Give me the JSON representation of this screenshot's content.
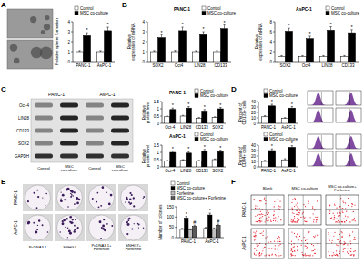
{
  "panel_labels": [
    "A",
    "B",
    "C",
    "D",
    "E",
    "F"
  ],
  "chart_data": [
    {
      "type": "bar",
      "ylabel": "Relative sphere formation",
      "categories": [
        "PANC-1",
        "AsPC-1"
      ],
      "series": [
        {
          "name": "Control",
          "color": "#ffffff",
          "values": [
            1,
            1
          ],
          "errors": [
            0.1,
            0.1
          ]
        },
        {
          "name": "MSC co-culture",
          "color": "#000000",
          "values": [
            2.6,
            3.1
          ],
          "errors": [
            0.3,
            0.35
          ],
          "annotation": "*"
        }
      ],
      "ylim": [
        0,
        4
      ],
      "yticks": [
        0,
        1,
        2,
        3,
        4
      ],
      "grid": false,
      "legend": "top"
    },
    {
      "type": "bar",
      "title": "PANC-1",
      "ylabel": "Relative expression of mRNA",
      "categories": [
        "SOX2",
        "Oct4",
        "LIN28",
        "CD133"
      ],
      "series": [
        {
          "name": "Control",
          "color": "#ffffff",
          "values": [
            1,
            1,
            1,
            1
          ],
          "errors": [
            0.1,
            0.12,
            0.1,
            0.1
          ]
        },
        {
          "name": "MSC co-culture",
          "color": "#000000",
          "values": [
            2.4,
            3.1,
            2.7,
            3.3
          ],
          "errors": [
            0.3,
            0.35,
            0.3,
            0.4
          ],
          "annotation": "*"
        }
      ],
      "ylim": [
        0,
        4
      ],
      "yticks": [
        0,
        1,
        2,
        3,
        4
      ],
      "grid": false,
      "legend": "top"
    },
    {
      "type": "bar",
      "title": "AsPC-1",
      "ylabel": "Relative expression of mRNA",
      "categories": [
        "SOX2",
        "Oct4",
        "LIN28",
        "CD133"
      ],
      "series": [
        {
          "name": "Control",
          "color": "#ffffff",
          "values": [
            1,
            1,
            1,
            1
          ],
          "errors": [
            0.2,
            0.2,
            0.2,
            0.2
          ]
        },
        {
          "name": "MSC co-culture",
          "color": "#000000",
          "values": [
            6.1,
            4.6,
            6.3,
            5.8
          ],
          "errors": [
            0.6,
            0.5,
            0.7,
            0.6
          ],
          "annotation": "*"
        }
      ],
      "ylim": [
        0,
        8
      ],
      "yticks": [
        0,
        2,
        4,
        6,
        8
      ],
      "grid": false,
      "legend": "top"
    },
    {
      "type": "bar",
      "title": "PANC-1",
      "ylabel": "Relative protein level",
      "categories": [
        "Oct-4",
        "LIN28",
        "CD133",
        "SOX2"
      ],
      "series": [
        {
          "name": "Control",
          "color": "#ffffff",
          "values": [
            0.45,
            0.5,
            0.35,
            0.4
          ],
          "errors": [
            0.05,
            0.05,
            0.05,
            0.05
          ]
        },
        {
          "name": "MSC co-culture",
          "color": "#000000",
          "values": [
            0.95,
            1.05,
            0.85,
            1
          ],
          "errors": [
            0.1,
            0.1,
            0.1,
            0.1
          ],
          "annotation": "*"
        }
      ],
      "ylim": [
        0,
        1.5
      ],
      "yticks": [
        0,
        0.5,
        1,
        1.5
      ],
      "grid": false,
      "legend": "top"
    },
    {
      "type": "bar",
      "title": "AsPC-1",
      "ylabel": "Relative protein level",
      "categories": [
        "Oct-4",
        "LIN28",
        "CD133",
        "SOX2"
      ],
      "series": [
        {
          "name": "Control",
          "color": "#ffffff",
          "values": [
            0.4,
            0.45,
            0.4,
            0.5
          ],
          "errors": [
            0.05,
            0.05,
            0.05,
            0.05
          ]
        },
        {
          "name": "MSC co-culture",
          "color": "#000000",
          "values": [
            1,
            0.95,
            1.1,
            1.05
          ],
          "errors": [
            0.1,
            0.1,
            0.1,
            0.1
          ],
          "annotation": "*"
        }
      ],
      "ylim": [
        0,
        1.5
      ],
      "yticks": [
        0,
        0.5,
        1,
        1.5
      ],
      "grid": false,
      "legend": "top"
    },
    {
      "type": "bar",
      "ylabel": "Percent of CD133+ cells",
      "categories": [
        "PANC-1",
        "AsPC-1"
      ],
      "series": [
        {
          "name": "Control",
          "color": "#ffffff",
          "values": [
            12,
            9
          ],
          "errors": [
            2,
            1.5
          ]
        },
        {
          "name": "MSC co-culture",
          "color": "#000000",
          "values": [
            32,
            28
          ],
          "errors": [
            3,
            3
          ],
          "annotation": "*"
        }
      ],
      "ylim": [
        0,
        40
      ],
      "yticks": [
        0,
        10,
        20,
        30,
        40
      ],
      "grid": false,
      "legend": "top"
    },
    {
      "type": "bar",
      "ylabel": "Percent of CD44+ cells",
      "categories": [
        "PANC-1",
        "AsPC-1"
      ],
      "series": [
        {
          "name": "Control",
          "color": "#ffffff",
          "values": [
            10,
            13
          ],
          "errors": [
            2,
            2
          ]
        },
        {
          "name": "MSC co-culture",
          "color": "#000000",
          "values": [
            30,
            36
          ],
          "errors": [
            3,
            3
          ],
          "annotation": "*"
        }
      ],
      "ylim": [
        0,
        40
      ],
      "yticks": [
        0,
        10,
        20,
        30,
        40
      ],
      "grid": false,
      "legend": "top"
    },
    {
      "type": "bar",
      "ylabel": "Number of colonies",
      "categories": [
        "PANC-1",
        "AsPC-1"
      ],
      "series": [
        {
          "name": "Control",
          "color": "#ffffff",
          "values": [
            40,
            45
          ],
          "errors": [
            5,
            5
          ]
        },
        {
          "name": "MSC co-culture",
          "color": "#000000",
          "values": [
            95,
            110
          ],
          "errors": [
            8,
            9
          ],
          "annotation": "*"
        },
        {
          "name": "Forfenine",
          "color": "#bfbfbf",
          "values": [
            38,
            42
          ],
          "errors": [
            5,
            5
          ]
        },
        {
          "name": "MSC co-culture+ Forfenine",
          "color": "#595959",
          "values": [
            55,
            60
          ],
          "errors": [
            6,
            6
          ],
          "annotation": "#"
        }
      ],
      "ylim": [
        0,
        150
      ],
      "yticks": [
        0,
        50,
        100,
        150
      ],
      "grid": false,
      "legend": "top"
    }
  ],
  "blot": {
    "groups": [
      "PANC-1",
      "AsPC-1"
    ],
    "columns": [
      "Control",
      "MSC co-culture",
      "Control",
      "MSC co-culture"
    ],
    "rows": [
      "Oct-4",
      "LIN28",
      "CD133",
      "SOX2",
      "GAPDH"
    ]
  },
  "colony_images": {
    "rows": [
      "PANC-1",
      "AsPC-1"
    ],
    "columns": [
      "PcDNA3.1",
      "SNHG7",
      "PcDNA3.1+ Forfenine",
      "SNHG7+ Forfenine"
    ]
  },
  "flow_plots": {
    "rows": [
      "PANC-1",
      "AsPC-1"
    ],
    "columns": [
      "Blank",
      "MSC co-culture",
      "MSC co-culture+ Forfenine"
    ]
  }
}
